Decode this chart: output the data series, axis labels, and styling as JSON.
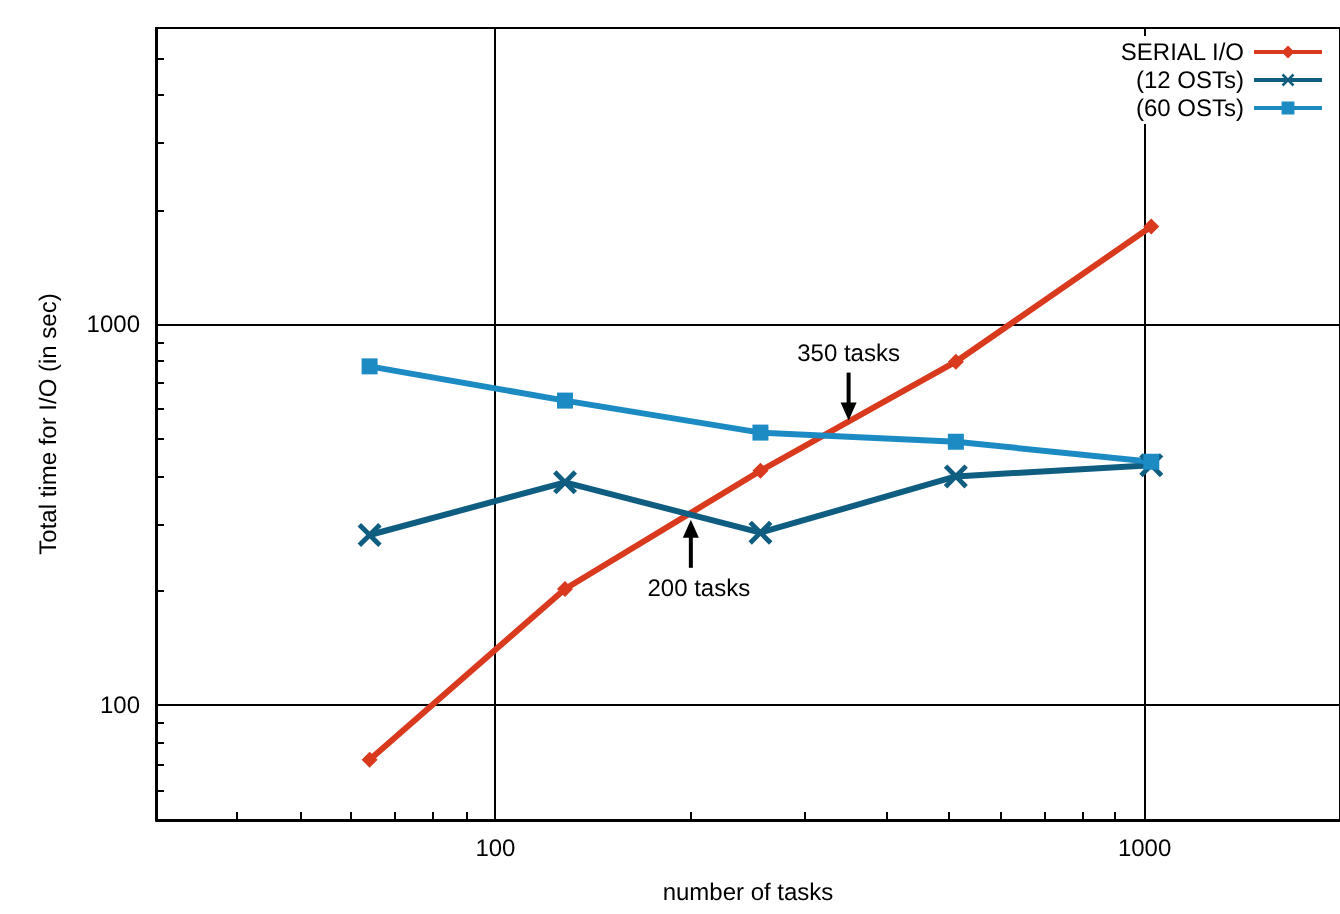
{
  "chart_data": {
    "type": "line",
    "xlabel": "number of tasks",
    "ylabel": "Total time for I/O (in sec)",
    "x": [
      64,
      128,
      256,
      512,
      1024
    ],
    "series": [
      {
        "name": "SERIAL I/O",
        "color": "#d93a1e",
        "marker": "diamond",
        "values": [
          72,
          202,
          413,
          798,
          1807
        ]
      },
      {
        "name": "(12 OSTs)",
        "color": "#0f5d80",
        "marker": "cross",
        "values": [
          280,
          385,
          284,
          399,
          427
        ]
      },
      {
        "name": "(60 OSTs)",
        "color": "#1c8bc4",
        "marker": "square",
        "values": [
          776,
          631,
          520,
          492,
          436
        ]
      }
    ],
    "log": "xy",
    "xlim": [
      30,
      2000
    ],
    "ylim": [
      50,
      6000
    ],
    "xticks": [
      100,
      1000
    ],
    "yticks": [
      100,
      1000
    ],
    "grid": true,
    "legend": "top right",
    "annotations": [
      {
        "text": "350 tasks",
        "x": 350,
        "y": 520
      },
      {
        "text": "200 tasks",
        "x": 200,
        "y": 330
      }
    ]
  }
}
